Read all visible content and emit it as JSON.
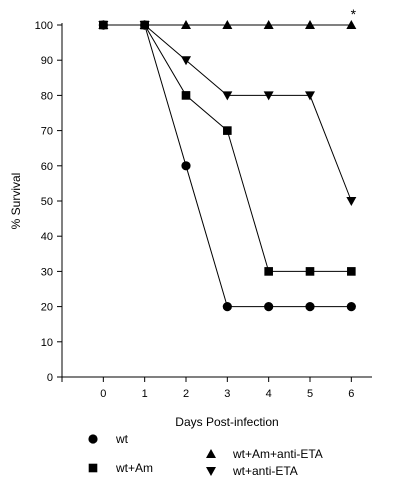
{
  "chart_data": {
    "type": "line",
    "title": "",
    "xlabel": "Days Post-infection",
    "ylabel": "% Survival",
    "x": [
      0,
      1,
      2,
      3,
      4,
      5,
      6
    ],
    "xlim": [
      -1,
      6.5
    ],
    "ylim": [
      0,
      100
    ],
    "y_ticks": [
      0,
      10,
      20,
      30,
      40,
      50,
      60,
      70,
      80,
      90,
      100
    ],
    "x_ticks": [
      0,
      1,
      2,
      3,
      4,
      5,
      6
    ],
    "grid": false,
    "legend_position": "bottom",
    "series": [
      {
        "name": "wt",
        "marker": "circle",
        "values": [
          100,
          100,
          60,
          20,
          20,
          20,
          20
        ]
      },
      {
        "name": "wt+Am",
        "marker": "square",
        "values": [
          100,
          100,
          80,
          70,
          30,
          30,
          30
        ]
      },
      {
        "name": "wt+Am+anti-ETA",
        "marker": "triangle-up",
        "values": [
          100,
          100,
          100,
          100,
          100,
          100,
          100
        ]
      },
      {
        "name": "wt+anti-ETA",
        "marker": "triangle-down",
        "values": [
          100,
          100,
          90,
          80,
          80,
          80,
          50
        ]
      }
    ],
    "annotations": [
      {
        "text": "*",
        "x": 6,
        "y": 100
      }
    ],
    "legend_order": [
      0,
      1,
      2,
      3
    ]
  }
}
